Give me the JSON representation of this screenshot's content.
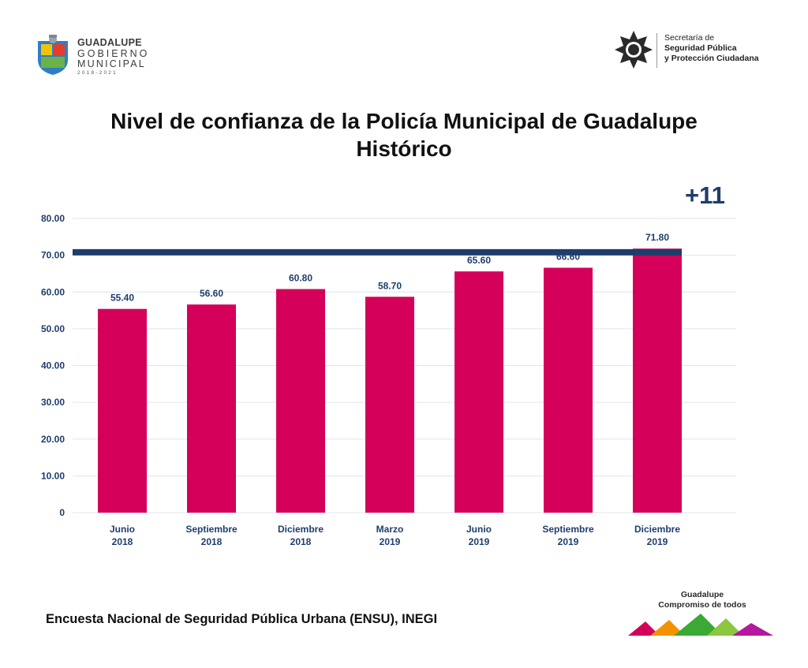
{
  "header": {
    "left_logo": {
      "name": "GUADALUPE",
      "line2": "GOBIERNO",
      "line3": "MUNICIPAL",
      "years": "2018-2021"
    },
    "right_logo": {
      "line1": "Secretaría de",
      "line2": "Seguridad Pública",
      "line3": "y Protección Ciudadana"
    }
  },
  "title": {
    "line1": "Nivel de confianza de la Policía Municipal de Guadalupe",
    "line2": "Histórico"
  },
  "annotation": {
    "change": "+11",
    "reference_value": 70.8
  },
  "colors": {
    "bar": "#d4005a",
    "label": "#1f3d6b",
    "reference_line": "#1f3d6b",
    "grid": "#dde6ee"
  },
  "chart_data": {
    "type": "bar",
    "categories": [
      [
        "Junio",
        "2018"
      ],
      [
        "Septiembre",
        "2018"
      ],
      [
        "Diciembre",
        "2018"
      ],
      [
        "Marzo",
        "2019"
      ],
      [
        "Junio",
        "2019"
      ],
      [
        "Septiembre",
        "2019"
      ],
      [
        "Diciembre",
        "2019"
      ]
    ],
    "values": [
      55.4,
      56.6,
      60.8,
      58.7,
      65.6,
      66.6,
      71.8
    ],
    "data_labels": [
      "55.40",
      "56.60",
      "60.80",
      "58.70",
      "65.60",
      "66.60",
      "71.80"
    ],
    "ylim": [
      0,
      80
    ],
    "yticks": [
      0,
      10,
      20,
      30,
      40,
      50,
      60,
      70,
      80
    ],
    "ytick_labels": [
      "0",
      "10.00",
      "20.00",
      "30.00",
      "40.00",
      "50.00",
      "60.00",
      "70.00",
      "80.00"
    ],
    "grid": true,
    "legend": "none"
  },
  "footer": {
    "source": "Encuesta Nacional de Seguridad Pública Urbana (ENSU), INEGI",
    "logo_line1": "Guadalupe",
    "logo_line2": "Compromiso de todos"
  }
}
